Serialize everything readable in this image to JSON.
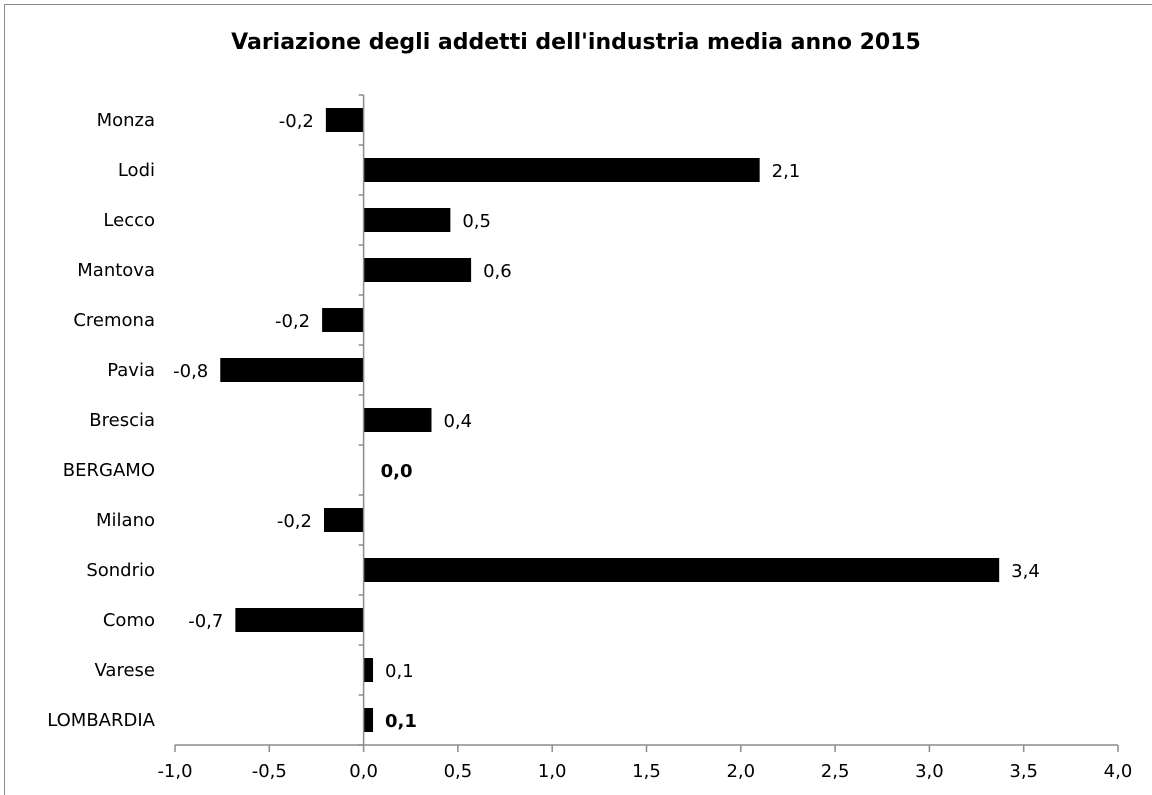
{
  "chart_data": {
    "type": "bar",
    "orientation": "horizontal",
    "title": "Variazione degli addetti dell'industria media anno 2015",
    "xlabel": "",
    "ylabel": "",
    "xlim": [
      -1.0,
      4.0
    ],
    "x_ticks": [
      "-1,0",
      "-0,5",
      "0,0",
      "0,5",
      "1,0",
      "1,5",
      "2,0",
      "2,5",
      "3,0",
      "3,5",
      "4,0"
    ],
    "grid": false,
    "legend": "none",
    "bar_color": "#000000",
    "categories": [
      "Monza",
      "Lodi",
      "Lecco",
      "Mantova",
      "Cremona",
      "Pavia",
      "Brescia",
      "BERGAMO",
      "Milano",
      "Sondrio",
      "Como",
      "Varese",
      "LOMBARDIA"
    ],
    "values": [
      -0.2,
      2.1,
      0.46,
      0.57,
      -0.22,
      -0.76,
      0.36,
      0.0,
      -0.21,
      3.37,
      -0.68,
      0.05,
      0.05
    ],
    "labels": [
      "-0,2",
      "2,1",
      "0,5",
      "0,6",
      "-0,2",
      "-0,8",
      "0,4",
      "0,0",
      "-0,2",
      "3,4",
      "-0,7",
      "0,1",
      "0,1"
    ],
    "bold_categories": [
      "BERGAMO",
      "LOMBARDIA"
    ]
  }
}
